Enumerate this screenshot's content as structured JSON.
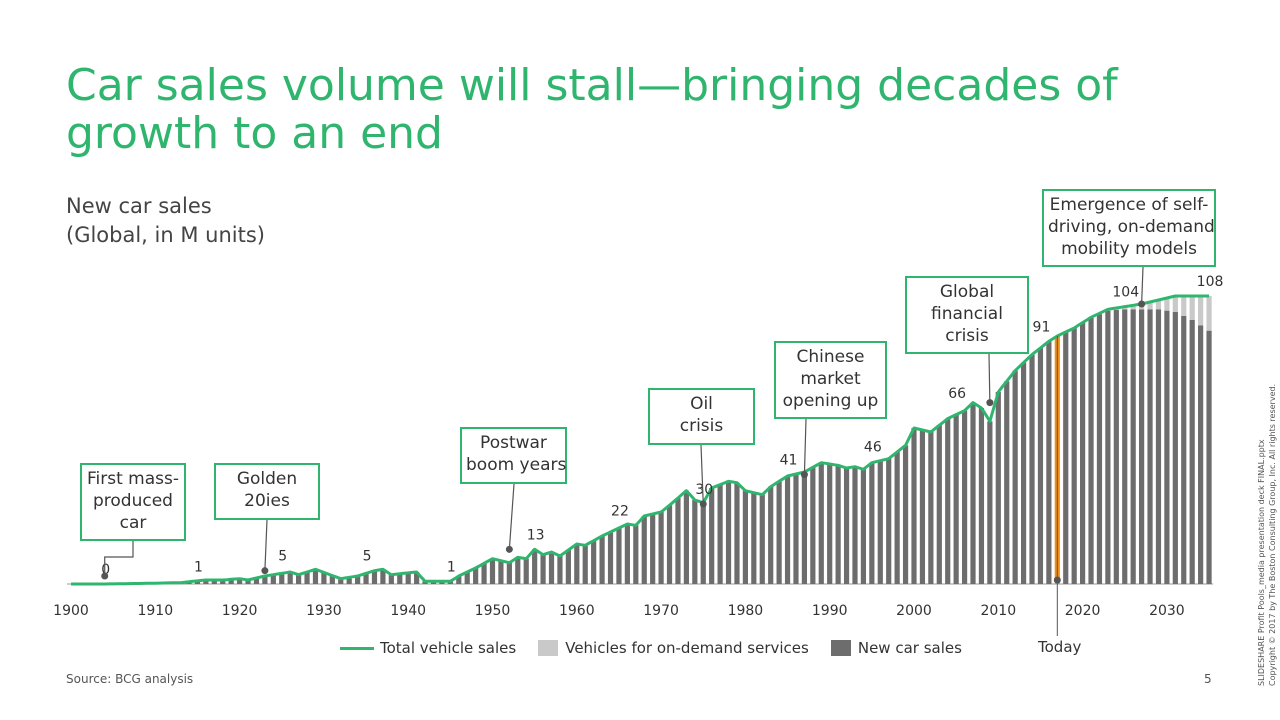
{
  "title": "Car sales volume will stall—bringing decades of growth to an end",
  "subtitle": {
    "line1": "New car sales",
    "line2": "(Global, in M units)"
  },
  "source": "Source: BCG analysis",
  "page_number": "5",
  "side_note": {
    "line1": "SLIDESHARE Profit Pools_media presentation deck FINAL.pptx",
    "line2": "Copyright © 2017 by The Boston Consulting Group, Inc. All rights reserved."
  },
  "annotations": {
    "mass_produced": [
      "First mass-",
      "produced",
      "car"
    ],
    "golden_20ies": [
      "Golden",
      "20ies"
    ],
    "postwar": [
      "Postwar",
      "boom years"
    ],
    "oil_crisis": [
      "Oil",
      "crisis"
    ],
    "chinese_market": [
      "Chinese",
      "market",
      "opening up"
    ],
    "financial_crisis": [
      "Global",
      "financial",
      "crisis"
    ],
    "self_driving": [
      "Emergence of self-",
      "driving, on-demand",
      "mobility models"
    ]
  },
  "today_label": "Today",
  "legend": {
    "total": "Total vehicle sales",
    "on_demand": "Vehicles for on-demand services",
    "new_car": "New car sales"
  },
  "colors": {
    "green": "#2fb56e",
    "bar": "#6d6d6d",
    "on_demand": "#c9c9c9",
    "today": "#f0901a"
  },
  "chart_data": {
    "type": "bar",
    "xlim": [
      1900,
      2035
    ],
    "ylim": [
      0,
      110
    ],
    "today_year": 2017,
    "x_ticks": [
      1900,
      1910,
      1920,
      1930,
      1940,
      1950,
      1960,
      1970,
      1980,
      1990,
      2000,
      2010,
      2020,
      2030
    ],
    "series": [
      {
        "name": "New car sales",
        "values_key": "new_car"
      },
      {
        "name": "Vehicles for on-demand services",
        "values_key": "on_demand"
      },
      {
        "name": "Total vehicle sales",
        "values_key": "total"
      }
    ],
    "total_keypoints": [
      [
        1900,
        0
      ],
      [
        1904,
        0
      ],
      [
        1910,
        0.3
      ],
      [
        1913,
        0.5
      ],
      [
        1916,
        1.5
      ],
      [
        1918,
        1.5
      ],
      [
        1920,
        2
      ],
      [
        1921,
        1.5
      ],
      [
        1923,
        3
      ],
      [
        1925,
        4
      ],
      [
        1926,
        4.5
      ],
      [
        1927,
        3.5
      ],
      [
        1929,
        5.5
      ],
      [
        1932,
        2
      ],
      [
        1934,
        3
      ],
      [
        1936,
        5
      ],
      [
        1937,
        5.5
      ],
      [
        1938,
        3.5
      ],
      [
        1941,
        4.5
      ],
      [
        1942,
        1
      ],
      [
        1945,
        1
      ],
      [
        1946,
        3
      ],
      [
        1948,
        6
      ],
      [
        1950,
        9.5
      ],
      [
        1952,
        8
      ],
      [
        1953,
        10
      ],
      [
        1954,
        9.5
      ],
      [
        1955,
        13
      ],
      [
        1956,
        11
      ],
      [
        1957,
        12
      ],
      [
        1958,
        10.5
      ],
      [
        1960,
        15
      ],
      [
        1961,
        14.5
      ],
      [
        1963,
        18
      ],
      [
        1965,
        21
      ],
      [
        1966,
        22.5
      ],
      [
        1967,
        22
      ],
      [
        1968,
        25.5
      ],
      [
        1970,
        27
      ],
      [
        1971,
        29.5
      ],
      [
        1973,
        35
      ],
      [
        1974,
        31.5
      ],
      [
        1975,
        30.5
      ],
      [
        1976,
        36
      ],
      [
        1978,
        38.5
      ],
      [
        1979,
        38
      ],
      [
        1980,
        35
      ],
      [
        1982,
        33.5
      ],
      [
        1983,
        36.5
      ],
      [
        1985,
        40.5
      ],
      [
        1987,
        42
      ],
      [
        1989,
        45.5
      ],
      [
        1991,
        44.5
      ],
      [
        1992,
        43.5
      ],
      [
        1993,
        44
      ],
      [
        1994,
        43
      ],
      [
        1995,
        45.5
      ],
      [
        1997,
        47
      ],
      [
        1999,
        52
      ],
      [
        2000,
        58.5
      ],
      [
        2002,
        57
      ],
      [
        2004,
        62
      ],
      [
        2006,
        65
      ],
      [
        2007,
        68
      ],
      [
        2008,
        66
      ],
      [
        2009,
        61
      ],
      [
        2010,
        72
      ],
      [
        2012,
        80
      ],
      [
        2014,
        86
      ],
      [
        2016,
        91
      ],
      [
        2017,
        93
      ],
      [
        2019,
        96
      ],
      [
        2021,
        100
      ],
      [
        2023,
        103
      ],
      [
        2025,
        104
      ],
      [
        2027,
        105
      ],
      [
        2029,
        106.5
      ],
      [
        2031,
        108
      ],
      [
        2035,
        108
      ]
    ],
    "on_demand_keypoints": [
      [
        2017,
        0
      ],
      [
        2020,
        0
      ],
      [
        2023,
        0.5
      ],
      [
        2025,
        1
      ],
      [
        2027,
        2
      ],
      [
        2029,
        3.5
      ],
      [
        2031,
        6
      ],
      [
        2033,
        9
      ],
      [
        2035,
        13
      ]
    ],
    "labels": [
      {
        "year": 1904,
        "value": 0,
        "text": "0"
      },
      {
        "year": 1915,
        "value": 1,
        "text": "1"
      },
      {
        "year": 1925,
        "value": 5,
        "text": "5"
      },
      {
        "year": 1935,
        "value": 5,
        "text": "5"
      },
      {
        "year": 1945,
        "value": 1,
        "text": "1"
      },
      {
        "year": 1955,
        "value": 13,
        "text": "13"
      },
      {
        "year": 1965,
        "value": 22,
        "text": "22"
      },
      {
        "year": 1975,
        "value": 30,
        "text": "30"
      },
      {
        "year": 1985,
        "value": 41,
        "text": "41"
      },
      {
        "year": 1995,
        "value": 46,
        "text": "46"
      },
      {
        "year": 2005,
        "value": 66,
        "text": "66"
      },
      {
        "year": 2015,
        "value": 91,
        "text": "91"
      },
      {
        "year": 2025,
        "value": 104,
        "text": "104"
      },
      {
        "year": 2035,
        "value": 108,
        "text": "108"
      }
    ],
    "event_markers": [
      {
        "key": "mass_produced",
        "year": 1904,
        "value": 3
      },
      {
        "key": "golden_20ies",
        "year": 1923,
        "value": 5
      },
      {
        "key": "postwar",
        "year": 1952,
        "value": 13
      },
      {
        "key": "oil_crisis",
        "year": 1975,
        "value": 30
      },
      {
        "key": "chinese_market",
        "year": 1987,
        "value": 41
      },
      {
        "key": "financial_crisis",
        "year": 2009,
        "value": 68
      },
      {
        "key": "self_driving",
        "year": 2027,
        "value": 105
      }
    ]
  }
}
